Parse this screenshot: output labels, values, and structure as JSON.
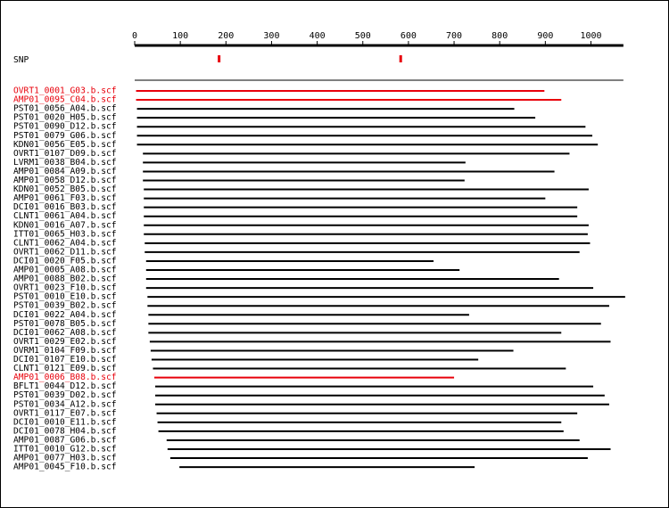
{
  "snp_label": "SNP",
  "axis": {
    "min": 0,
    "max": 1075,
    "ticks": [
      0,
      100,
      200,
      300,
      400,
      500,
      600,
      700,
      800,
      900,
      1000
    ]
  },
  "snps": [
    185,
    583
  ],
  "colors": {
    "highlight": "#e8000b",
    "normal": "#000000",
    "snp": "#e8000b",
    "background": "#ffffff"
  },
  "reads": [
    {
      "name": "OVRT1_0001_G03.b.scf",
      "start": 3,
      "end": 898,
      "highlight": true
    },
    {
      "name": "AMP01_0095_C04.b.scf",
      "start": 3,
      "end": 935,
      "highlight": true
    },
    {
      "name": "PST01_0056_A04.b.scf",
      "start": 5,
      "end": 832,
      "highlight": false
    },
    {
      "name": "PST01_0020_H05.b.scf",
      "start": 5,
      "end": 878,
      "highlight": false
    },
    {
      "name": "PST01_0090_D12.b.scf",
      "start": 5,
      "end": 988,
      "highlight": false
    },
    {
      "name": "PST01_0079_G06.b.scf",
      "start": 5,
      "end": 1003,
      "highlight": false
    },
    {
      "name": "KDN01_0056_E05.b.scf",
      "start": 5,
      "end": 1015,
      "highlight": false
    },
    {
      "name": "OVRT1_0107_D09.b.scf",
      "start": 18,
      "end": 953,
      "highlight": false
    },
    {
      "name": "LVRM1_0038_B04.b.scf",
      "start": 18,
      "end": 725,
      "highlight": false
    },
    {
      "name": "AMP01_0084_A09.b.scf",
      "start": 18,
      "end": 920,
      "highlight": false
    },
    {
      "name": "AMP01_0058_D12.b.scf",
      "start": 18,
      "end": 723,
      "highlight": false
    },
    {
      "name": "KDN01_0052_B05.b.scf",
      "start": 20,
      "end": 995,
      "highlight": false
    },
    {
      "name": "AMP01_0061_F03.b.scf",
      "start": 20,
      "end": 900,
      "highlight": false
    },
    {
      "name": "DCI01_0016_B03.b.scf",
      "start": 20,
      "end": 970,
      "highlight": false
    },
    {
      "name": "CLNT1_0061_A04.b.scf",
      "start": 20,
      "end": 970,
      "highlight": false
    },
    {
      "name": "KDN01_0016_A07.b.scf",
      "start": 20,
      "end": 995,
      "highlight": false
    },
    {
      "name": "ITT01_0065_H03.b.scf",
      "start": 20,
      "end": 993,
      "highlight": false
    },
    {
      "name": "CLNT1_0062_A04.b.scf",
      "start": 22,
      "end": 998,
      "highlight": false
    },
    {
      "name": "OVRT1_0062_D11.b.scf",
      "start": 22,
      "end": 975,
      "highlight": false
    },
    {
      "name": "DCI01_0020_F05.b.scf",
      "start": 25,
      "end": 655,
      "highlight": false
    },
    {
      "name": "AMP01_0005_A08.b.scf",
      "start": 25,
      "end": 712,
      "highlight": false
    },
    {
      "name": "AMP01_0088_B02.b.scf",
      "start": 25,
      "end": 930,
      "highlight": false
    },
    {
      "name": "OVRT1_0023_F10.b.scf",
      "start": 25,
      "end": 1005,
      "highlight": false
    },
    {
      "name": "PST01_0010_E10.b.scf",
      "start": 28,
      "end": 1075,
      "highlight": false
    },
    {
      "name": "PST01_0039_B02.b.scf",
      "start": 28,
      "end": 1040,
      "highlight": false
    },
    {
      "name": "DCI01_0022_A04.b.scf",
      "start": 30,
      "end": 733,
      "highlight": false
    },
    {
      "name": "PST01_0078_B05.b.scf",
      "start": 30,
      "end": 1022,
      "highlight": false
    },
    {
      "name": "DCI01_0062_A08.b.scf",
      "start": 30,
      "end": 935,
      "highlight": false
    },
    {
      "name": "OVRT1_0029_E02.b.scf",
      "start": 33,
      "end": 1043,
      "highlight": false
    },
    {
      "name": "OVRM1_0104_F09.b.scf",
      "start": 35,
      "end": 830,
      "highlight": false
    },
    {
      "name": "DCI01_0107_E10.b.scf",
      "start": 37,
      "end": 753,
      "highlight": false
    },
    {
      "name": "CLNT1_0121_E09.b.scf",
      "start": 40,
      "end": 945,
      "highlight": false
    },
    {
      "name": "AMP01_0006_B08.b.scf",
      "start": 43,
      "end": 700,
      "highlight": true
    },
    {
      "name": "BFLT1_0044_D12.b.scf",
      "start": 45,
      "end": 1005,
      "highlight": false
    },
    {
      "name": "PST01_0039_D02.b.scf",
      "start": 45,
      "end": 1030,
      "highlight": false
    },
    {
      "name": "PST01_0034_A12.b.scf",
      "start": 45,
      "end": 1040,
      "highlight": false
    },
    {
      "name": "OVRT1_0117_E07.b.scf",
      "start": 48,
      "end": 970,
      "highlight": false
    },
    {
      "name": "DCI01_0010_E11.b.scf",
      "start": 50,
      "end": 935,
      "highlight": false
    },
    {
      "name": "DCI01_0078_H04.b.scf",
      "start": 52,
      "end": 940,
      "highlight": false
    },
    {
      "name": "AMP01_0087_G06.b.scf",
      "start": 70,
      "end": 975,
      "highlight": false
    },
    {
      "name": "ITT01_0010_G12.b.scf",
      "start": 72,
      "end": 1043,
      "highlight": false
    },
    {
      "name": "AMP01_0077_H03.b.scf",
      "start": 78,
      "end": 993,
      "highlight": false
    },
    {
      "name": "AMP01_0045_F10.b.scf",
      "start": 98,
      "end": 745,
      "highlight": false
    }
  ]
}
